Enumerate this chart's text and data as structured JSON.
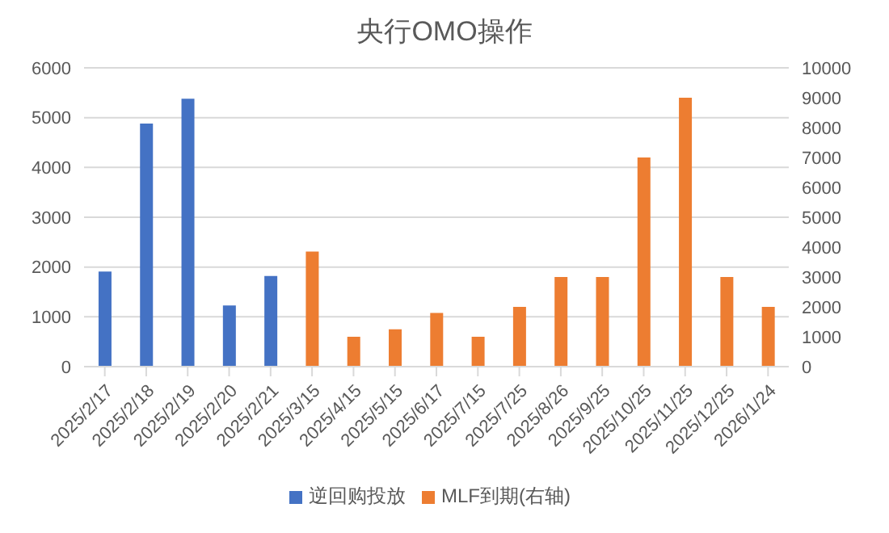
{
  "chart_data": {
    "type": "bar",
    "title": "央行OMO操作",
    "categories": [
      "2025/2/17",
      "2025/2/18",
      "2025/2/19",
      "2025/2/20",
      "2025/2/21",
      "2025/3/15",
      "2025/4/15",
      "2025/5/15",
      "2025/6/17",
      "2025/7/15",
      "2025/7/25",
      "2025/8/26",
      "2025/9/25",
      "2025/10/25",
      "2025/11/25",
      "2025/12/25",
      "2026/1/24"
    ],
    "series": [
      {
        "name": "逆回购投放",
        "color": "#4472c4",
        "values": [
          1910,
          4880,
          5380,
          1230,
          1820,
          null,
          null,
          null,
          null,
          null,
          null,
          null,
          null,
          null,
          null,
          null,
          null
        ]
      },
      {
        "name": "MLF到期(右轴)",
        "color": "#ed7d31",
        "axis": "y2",
        "values": [
          null,
          null,
          null,
          null,
          null,
          3850,
          1000,
          1250,
          1800,
          1000,
          2000,
          3000,
          3000,
          7000,
          9000,
          3000,
          2000
        ]
      }
    ],
    "ylim": [
      0,
      6000
    ],
    "yticks": [
      0,
      1000,
      2000,
      3000,
      4000,
      5000,
      6000
    ],
    "y2lim": [
      0,
      10000
    ],
    "y2ticks": [
      0,
      1000,
      2000,
      3000,
      4000,
      5000,
      6000,
      7000,
      8000,
      9000,
      10000
    ],
    "grid": "y",
    "legend": "bottom"
  }
}
